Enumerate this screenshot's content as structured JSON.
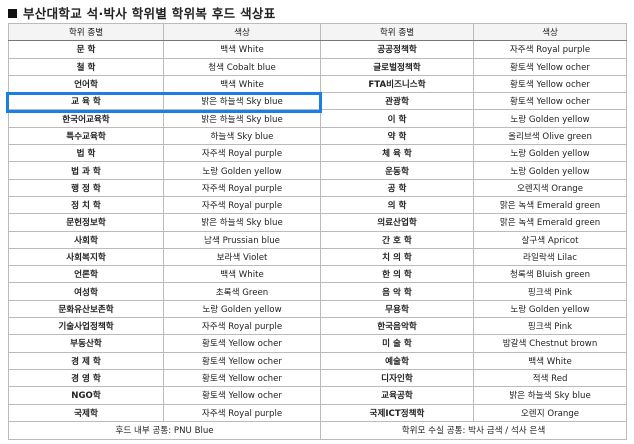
{
  "title": "부산대학교 석·박사 학위별 학위복 후드 색상표",
  "headers": [
    "학위 종별",
    "색상",
    "학위 종별",
    "색상"
  ],
  "rows": [
    [
      [
        "문 학",
        "백색 White"
      ],
      [
        "공공정책학",
        "자주색 Royal purple"
      ]
    ],
    [
      [
        "철 학",
        "청색 Cobalt blue"
      ],
      [
        "글로벌정책학",
        "황토색 Yellow ocher"
      ]
    ],
    [
      [
        "언어학",
        "백색 White"
      ],
      [
        "FTA비즈니스학",
        "황토색 Yellow ocher"
      ]
    ],
    [
      [
        "교 육 학",
        "밝은 하늘색 Sky blue"
      ],
      [
        "관광학",
        "황토색 Yellow ocher"
      ]
    ],
    [
      [
        "한국어교육학",
        "밝은 하늘색 Sky blue"
      ],
      [
        "이 학",
        "노랑 Golden yellow"
      ]
    ],
    [
      [
        "특수교육학",
        "하늘색 Sky blue"
      ],
      [
        "약 학",
        "올리브색 Olive green"
      ]
    ],
    [
      [
        "법 학",
        "자주색 Royal purple"
      ],
      [
        "체 육 학",
        "노랑 Golden yellow"
      ]
    ],
    [
      [
        "법 과 학",
        "노랑 Golden yellow"
      ],
      [
        "운동학",
        "노랑 Golden yellow"
      ]
    ],
    [
      [
        "행 정 학",
        "자주색 Royal purple"
      ],
      [
        "공 학",
        "오렌지색 Orange"
      ]
    ],
    [
      [
        "정 치 학",
        "자주색 Royal purple"
      ],
      [
        "의 학",
        "맑은 녹색 Emerald green"
      ]
    ],
    [
      [
        "문헌정보학",
        "밝은 하늘색 Sky blue"
      ],
      [
        "의료산업학",
        "맑은 녹색 Emerald green"
      ]
    ],
    [
      [
        "사회학",
        "남색 Prussian blue"
      ],
      [
        "간 호 학",
        "살구색 Apricot"
      ]
    ],
    [
      [
        "사회복지학",
        "보라색 Violet"
      ],
      [
        "치 의 학",
        "라일락색 Lilac"
      ]
    ],
    [
      [
        "언론학",
        "백색 White"
      ],
      [
        "한 의 학",
        "청록색 Bluish green"
      ]
    ],
    [
      [
        "여성학",
        "초록색 Green"
      ],
      [
        "음 악 학",
        "핑크색 Pink"
      ]
    ],
    [
      [
        "문화유산보존학",
        "노랑 Golden yellow"
      ],
      [
        "무용학",
        "노랑 Golden yellow"
      ]
    ],
    [
      [
        "기술사업정책학",
        "자주색 Royal purple"
      ],
      [
        "한국음악학",
        "핑크색 Pink"
      ]
    ],
    [
      [
        "부동산학",
        "황토색 Yellow ocher"
      ],
      [
        "미 술 학",
        "밤갈색 Chestnut brown"
      ]
    ],
    [
      [
        "경 제 학",
        "황토색 Yellow ocher"
      ],
      [
        "예술학",
        "백색 White"
      ]
    ],
    [
      [
        "경 영 학",
        "황토색 Yellow ocher"
      ],
      [
        "디자인학",
        "적색  Red"
      ]
    ],
    [
      [
        "NGO학",
        "황토색 Yellow ocher"
      ],
      [
        "교육공학",
        "밝은 하늘색 Sky blue"
      ]
    ],
    [
      [
        "국제학",
        "자주색 Royal purple"
      ],
      [
        "국제ICT정책학",
        "오렌지 Orange"
      ]
    ]
  ],
  "footer": [
    "후드 내부 공통: PNU Blue",
    "학위모 수실 공통: 박사 금색 / 석사 은색"
  ],
  "highlight_color": "#1a7fe0"
}
